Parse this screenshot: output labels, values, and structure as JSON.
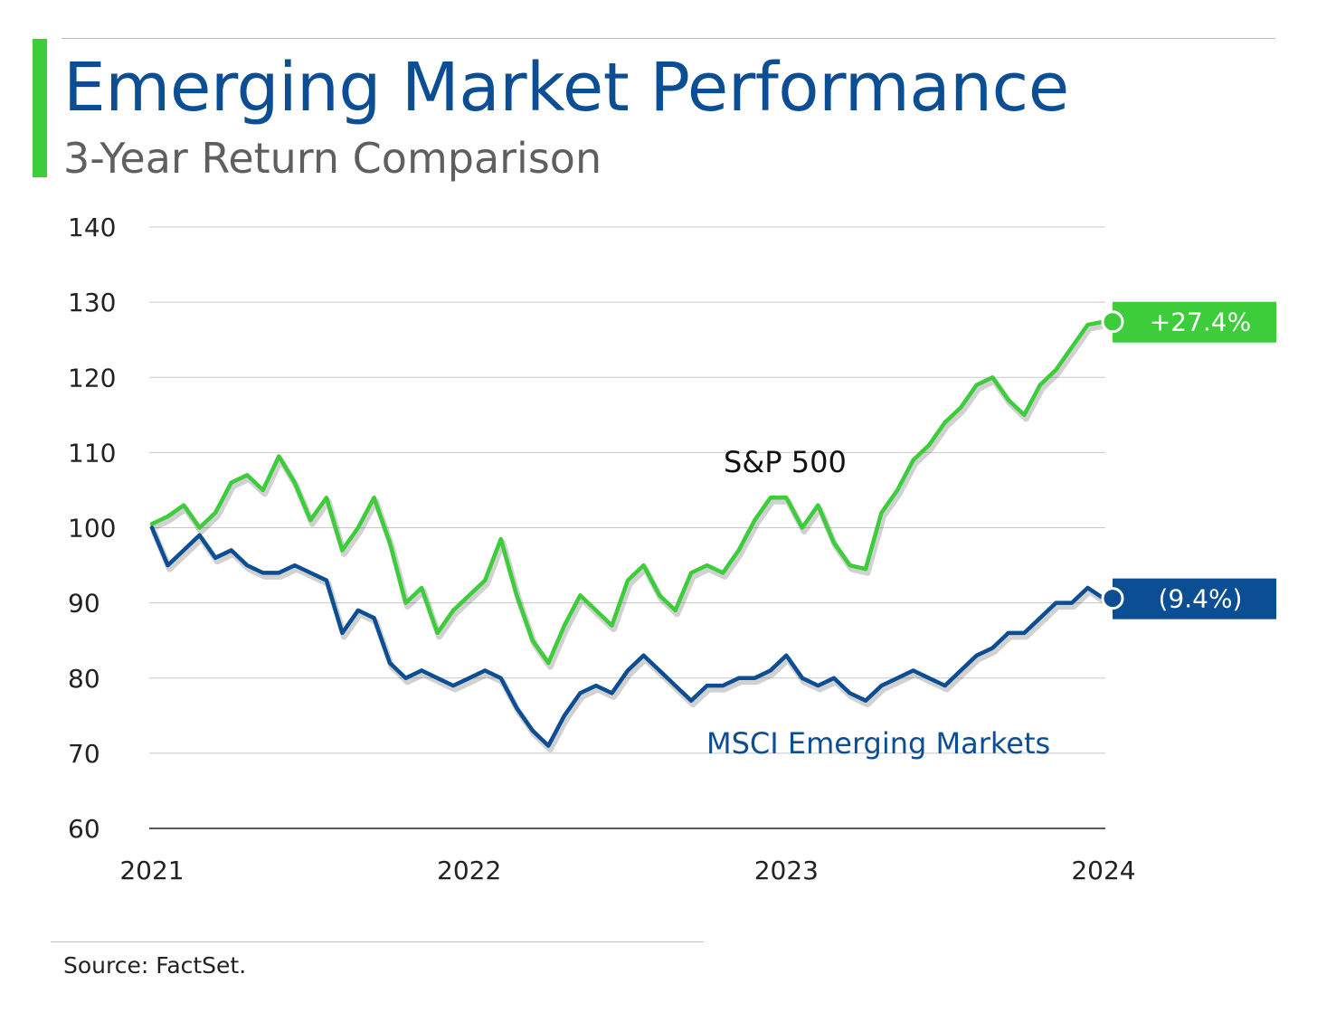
{
  "header": {
    "title": "Emerging Market Performance",
    "subtitle": "3-Year Return Comparison"
  },
  "footer": {
    "source": "Source: FactSet."
  },
  "colors": {
    "accent": "#3dcc3a",
    "title": "#0b4e93",
    "sp500": "#3dcc3a",
    "msci": "#0b4e93",
    "grid": "#c8c8c8",
    "axis": "#222222"
  },
  "chart_data": {
    "type": "line",
    "title": "Emerging Market Performance",
    "subtitle": "3-Year Return Comparison",
    "xlabel": "",
    "ylabel": "",
    "xlim": [
      2021,
      2024
    ],
    "ylim": [
      60,
      140
    ],
    "y_ticks": [
      60,
      70,
      80,
      90,
      100,
      110,
      120,
      130,
      140
    ],
    "x_ticks": [
      "2021",
      "2022",
      "2023",
      "2024"
    ],
    "grid": "horizontal",
    "legend": "none",
    "series": [
      {
        "name": "S&P 500",
        "color": "#3dcc3a",
        "end_label": "+27.4%",
        "x": [
          2021.0,
          2021.05,
          2021.1,
          2021.15,
          2021.2,
          2021.25,
          2021.3,
          2021.35,
          2021.4,
          2021.45,
          2021.5,
          2021.55,
          2021.6,
          2021.65,
          2021.7,
          2021.75,
          2021.8,
          2021.85,
          2021.9,
          2021.95,
          2022.0,
          2022.05,
          2022.1,
          2022.15,
          2022.2,
          2022.25,
          2022.3,
          2022.35,
          2022.4,
          2022.45,
          2022.5,
          2022.55,
          2022.6,
          2022.65,
          2022.7,
          2022.75,
          2022.8,
          2022.85,
          2022.9,
          2022.95,
          2023.0,
          2023.05,
          2023.1,
          2023.15,
          2023.2,
          2023.25,
          2023.3,
          2023.35,
          2023.4,
          2023.45,
          2023.5,
          2023.55,
          2023.6,
          2023.65,
          2023.7,
          2023.75,
          2023.8,
          2023.85,
          2023.9,
          2023.95,
          2024.0
        ],
        "y": [
          100.5,
          101.5,
          103.0,
          100.0,
          102.0,
          106.0,
          107.0,
          105.0,
          109.5,
          106.0,
          101.0,
          104.0,
          97.0,
          100.0,
          104.0,
          98.0,
          90.0,
          92.0,
          86.0,
          89.0,
          91.0,
          93.0,
          98.5,
          91.0,
          85.0,
          82.0,
          87.0,
          91.0,
          89.0,
          87.0,
          93.0,
          95.0,
          91.0,
          89.0,
          94.0,
          95.0,
          94.0,
          97.0,
          101.0,
          104.0,
          104.0,
          100.0,
          103.0,
          98.0,
          95.0,
          94.5,
          102.0,
          105.0,
          109.0,
          111.0,
          114.0,
          116.0,
          119.0,
          120.0,
          117.0,
          115.0,
          119.0,
          121.0,
          124.0,
          127.0,
          127.4
        ]
      },
      {
        "name": "MSCI Emerging Markets",
        "color": "#0b4e93",
        "end_label": "(9.4%)",
        "x": [
          2021.0,
          2021.05,
          2021.1,
          2021.15,
          2021.2,
          2021.25,
          2021.3,
          2021.35,
          2021.4,
          2021.45,
          2021.5,
          2021.55,
          2021.6,
          2021.65,
          2021.7,
          2021.75,
          2021.8,
          2021.85,
          2021.9,
          2021.95,
          2022.0,
          2022.05,
          2022.1,
          2022.15,
          2022.2,
          2022.25,
          2022.3,
          2022.35,
          2022.4,
          2022.45,
          2022.5,
          2022.55,
          2022.6,
          2022.65,
          2022.7,
          2022.75,
          2022.8,
          2022.85,
          2022.9,
          2022.95,
          2023.0,
          2023.05,
          2023.1,
          2023.15,
          2023.2,
          2023.25,
          2023.3,
          2023.35,
          2023.4,
          2023.45,
          2023.5,
          2023.55,
          2023.6,
          2023.65,
          2023.7,
          2023.75,
          2023.8,
          2023.85,
          2023.9,
          2023.95,
          2024.0
        ],
        "y": [
          100.0,
          95.0,
          97.0,
          99.0,
          96.0,
          97.0,
          95.0,
          94.0,
          94.0,
          95.0,
          94.0,
          93.0,
          86.0,
          89.0,
          88.0,
          82.0,
          80.0,
          81.0,
          80.0,
          79.0,
          80.0,
          81.0,
          80.0,
          76.0,
          73.0,
          71.0,
          75.0,
          78.0,
          79.0,
          78.0,
          81.0,
          83.0,
          81.0,
          79.0,
          77.0,
          79.0,
          79.0,
          80.0,
          80.0,
          81.0,
          83.0,
          80.0,
          79.0,
          80.0,
          78.0,
          77.0,
          79.0,
          80.0,
          81.0,
          80.0,
          79.0,
          81.0,
          83.0,
          84.0,
          86.0,
          86.0,
          88.0,
          90.0,
          90.0,
          92.0,
          90.6
        ]
      }
    ],
    "annotations": [
      "S&P 500",
      "MSCI Emerging Markets"
    ]
  }
}
